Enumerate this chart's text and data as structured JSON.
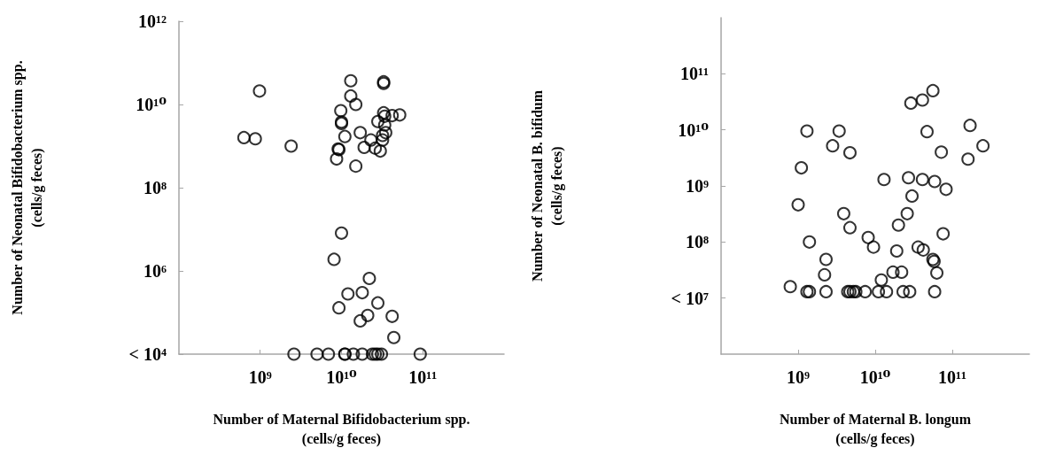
{
  "chart_data": [
    {
      "type": "scatter",
      "xlabel": "Number of Maternal Bifidobacterium spp.\n(cells/g feces)",
      "ylabel": "Number of Neonatal Bifidobacterium spp.\n(cells/g feces)",
      "log": "xy",
      "marker": "circle",
      "xlim": [
        100000000.0,
        1000000000000.0
      ],
      "xticks": [
        {
          "value": 1000000000.0,
          "label": "10⁹"
        },
        {
          "value": 10000000000.0,
          "label": "10¹⁰"
        },
        {
          "value": 100000000000.0,
          "label": "10¹¹"
        }
      ],
      "ylim": [
        10000.0,
        1000000000000.0
      ],
      "yticks": [
        {
          "value": 10000.0,
          "label": "< 10⁴"
        },
        {
          "value": 1000000.0,
          "label": "10⁶"
        },
        {
          "value": 100000000.0,
          "label": "10⁸"
        },
        {
          "value": 10000000000.0,
          "label": "10¹⁰"
        },
        {
          "value": 1000000000000.0,
          "label": "10¹²"
        }
      ],
      "series": [
        {
          "color": "#000000",
          "x": [
            980000000.0,
            630000000.0,
            870000000.0,
            2400000000.0,
            13000000000.0,
            33000000000.0,
            33000000000.0,
            13000000000.0,
            15000000000.0,
            9800000000.0,
            10000000000.0,
            10000000000.0,
            33000000000.0,
            34000000000.0,
            42000000000.0,
            52000000000.0,
            28000000000.0,
            34000000000.0,
            17000000000.0,
            11000000000.0,
            35000000000.0,
            32000000000.0,
            23000000000.0,
            32000000000.0,
            19000000000.0,
            26000000000.0,
            30000000000.0,
            9100000000.0,
            9300000000.0,
            8700000000.0,
            15000000000.0,
            10000000000.0,
            8100000000.0,
            22000000000.0,
            12000000000.0,
            18000000000.0,
            9300000000.0,
            28000000000.0,
            21000000000.0,
            17000000000.0,
            42000000000.0,
            44000000000.0,
            2600000000.0,
            5000000000.0,
            6900000000.0,
            11000000000.0,
            11000000000.0,
            14000000000.0,
            18000000000.0,
            24000000000.0,
            26000000000.0,
            28000000000.0,
            31000000000.0,
            93000000000.0
          ],
          "values": [
            21000000000.0,
            1600000000.0,
            1500000000.0,
            1000000000.0,
            37000000000.0,
            35000000000.0,
            32000000000.0,
            16000000000.0,
            10000000000.0,
            7100000000.0,
            3800000000.0,
            3500000000.0,
            6300000000.0,
            5200000000.0,
            5400000000.0,
            5600000000.0,
            3900000000.0,
            3200000000.0,
            2100000000.0,
            1700000000.0,
            2100000000.0,
            1800000000.0,
            1400000000.0,
            1400000000.0,
            930000000.0,
            890000000.0,
            760000000.0,
            850000000.0,
            820000000.0,
            490000000.0,
            330000000.0,
            8100000.0,
            1900000.0,
            660000.0,
            280000.0,
            300000.0,
            130000.0,
            170000.0,
            85000.0,
            63000.0,
            81000.0,
            25000.0,
            10000.0,
            10000.0,
            10000.0,
            10000.0,
            10000.0,
            10000.0,
            10000.0,
            10000.0,
            10000.0,
            10000.0,
            10000.0,
            10000.0
          ]
        }
      ]
    },
    {
      "type": "scatter",
      "xlabel": "Number of Maternal B. longum\n(cells/g feces)",
      "ylabel": "Number of Neonatal B. bifidum\n(cells/g feces)",
      "log": "xy",
      "marker": "circle",
      "xlim": [
        100000000.0,
        1000000000000.0
      ],
      "xticks": [
        {
          "value": 1000000000.0,
          "label": "10⁹"
        },
        {
          "value": 10000000000.0,
          "label": "10¹⁰"
        },
        {
          "value": 100000000000.0,
          "label": "10¹¹"
        }
      ],
      "ylim": [
        1000000.0,
        1000000000000.0
      ],
      "yticks": [
        {
          "value": 10000000.0,
          "label": "< 10⁷"
        },
        {
          "value": 100000000.0,
          "label": "10⁸"
        },
        {
          "value": 1000000000.0,
          "label": "10⁹"
        },
        {
          "value": 10000000000.0,
          "label": "10¹⁰"
        },
        {
          "value": 100000000000.0,
          "label": "10¹¹"
        }
      ],
      "series": [
        {
          "color": "#000000",
          "x": [
            1300000000.0,
            3400000000.0,
            2800000000.0,
            4700000000.0,
            1100000000.0,
            29000000000.0,
            41000000000.0,
            56000000000.0,
            47000000000.0,
            72000000000.0,
            13000000000.0,
            27000000000.0,
            41000000000.0,
            59000000000.0,
            83000000000.0,
            30000000000.0,
            1000000000.0,
            170000000000.0,
            250000000000.0,
            160000000000.0,
            3900000000.0,
            4700000000.0,
            26000000000.0,
            20000000000.0,
            1400000000.0,
            8100000000.0,
            9500000000.0,
            19000000000.0,
            36000000000.0,
            42000000000.0,
            76000000000.0,
            56000000000.0,
            58000000000.0,
            63000000000.0,
            2300000000.0,
            2200000000.0,
            12000000000.0,
            17000000000.0,
            22000000000.0,
            790000000.0,
            1300000000.0,
            1400000000.0,
            2300000000.0,
            4400000000.0,
            4700000000.0,
            5200000000.0,
            5600000000.0,
            7400000000.0,
            11000000000.0,
            14000000000.0,
            23000000000.0,
            28000000000.0,
            59000000000.0
          ],
          "values": [
            9500000000.0,
            9500000000.0,
            5200000000.0,
            3900000000.0,
            2100000000.0,
            30000000000.0,
            34000000000.0,
            50000000000.0,
            9300000000.0,
            4000000000.0,
            1300000000.0,
            1400000000.0,
            1300000000.0,
            1200000000.0,
            870000000.0,
            660000000.0,
            460000000.0,
            12000000000.0,
            5200000000.0,
            3000000000.0,
            320000000.0,
            180000000.0,
            320000000.0,
            200000000.0,
            100000000.0,
            120000000.0,
            81000000.0,
            69000000.0,
            81000000.0,
            72000000.0,
            140000000.0,
            49000000.0,
            45000000.0,
            28000000.0,
            49000000.0,
            26000000.0,
            21000000.0,
            29000000.0,
            29000000.0,
            16000000.0,
            13000000.0,
            13000000.0,
            13000000.0,
            13000000.0,
            13000000.0,
            13000000.0,
            13000000.0,
            13000000.0,
            13000000.0,
            13000000.0,
            13000000.0,
            13000000.0,
            13000000.0
          ]
        }
      ]
    }
  ]
}
